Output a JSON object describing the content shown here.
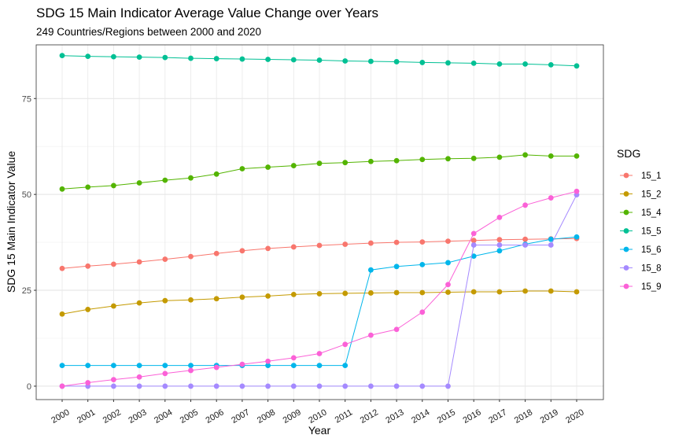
{
  "chart_data": {
    "type": "line",
    "title": "SDG 15 Main Indicator Average Value Change over Years",
    "subtitle": "249 Countries/Regions between 2000 and 2020",
    "xlabel": "Year",
    "ylabel": "SDG 15 Main Indicator Value",
    "legend_title": "SDG",
    "legend_position": "right",
    "grid": true,
    "categories": [
      "2000",
      "2001",
      "2002",
      "2003",
      "2004",
      "2005",
      "2006",
      "2007",
      "2008",
      "2009",
      "2010",
      "2011",
      "2012",
      "2013",
      "2014",
      "2015",
      "2016",
      "2017",
      "2018",
      "2019",
      "2020"
    ],
    "ylim": [
      -3.5,
      89
    ],
    "yticks": [
      0,
      25,
      50,
      75
    ],
    "series": [
      {
        "name": "15_1",
        "color": "#F8766D",
        "values": [
          30.7,
          31.3,
          31.8,
          32.4,
          33.1,
          33.8,
          34.6,
          35.3,
          35.9,
          36.3,
          36.7,
          37.0,
          37.3,
          37.5,
          37.6,
          37.8,
          38.0,
          38.2,
          38.3,
          38.4,
          38.5
        ]
      },
      {
        "name": "15_2",
        "color": "#C49A00",
        "values": [
          18.8,
          20.0,
          20.9,
          21.7,
          22.3,
          22.5,
          22.8,
          23.2,
          23.5,
          23.9,
          24.1,
          24.2,
          24.3,
          24.4,
          24.4,
          24.5,
          24.6,
          24.6,
          24.8,
          24.8,
          24.6
        ]
      },
      {
        "name": "15_4",
        "color": "#53B400",
        "values": [
          51.4,
          51.9,
          52.3,
          53.0,
          53.7,
          54.3,
          55.3,
          56.7,
          57.1,
          57.5,
          58.1,
          58.3,
          58.6,
          58.8,
          59.1,
          59.3,
          59.4,
          59.7,
          60.3,
          60.0,
          60.0
        ]
      },
      {
        "name": "15_5",
        "color": "#00C094",
        "values": [
          86.2,
          86.0,
          85.9,
          85.8,
          85.7,
          85.5,
          85.4,
          85.3,
          85.2,
          85.1,
          85.0,
          84.8,
          84.7,
          84.6,
          84.4,
          84.3,
          84.2,
          84.0,
          84.0,
          83.8,
          83.5
        ]
      },
      {
        "name": "15_6",
        "color": "#00B6EB",
        "values": [
          5.4,
          5.4,
          5.4,
          5.4,
          5.4,
          5.4,
          5.4,
          5.4,
          5.4,
          5.4,
          5.4,
          5.4,
          30.3,
          31.2,
          31.7,
          32.2,
          33.9,
          35.3,
          37.0,
          38.3,
          38.9
        ]
      },
      {
        "name": "15_8",
        "color": "#A58AFF",
        "values": [
          0,
          0,
          0,
          0,
          0,
          0,
          0,
          0,
          0,
          0,
          0,
          0,
          0,
          0,
          0,
          0,
          36.8,
          36.8,
          36.8,
          36.8,
          49.9
        ]
      },
      {
        "name": "15_9",
        "color": "#FB61D7",
        "values": [
          0,
          0.9,
          1.7,
          2.4,
          3.3,
          4.1,
          4.9,
          5.7,
          6.5,
          7.4,
          8.5,
          10.9,
          13.3,
          14.8,
          19.3,
          26.5,
          39.8,
          44.0,
          47.2,
          49.1,
          50.8
        ]
      }
    ]
  }
}
